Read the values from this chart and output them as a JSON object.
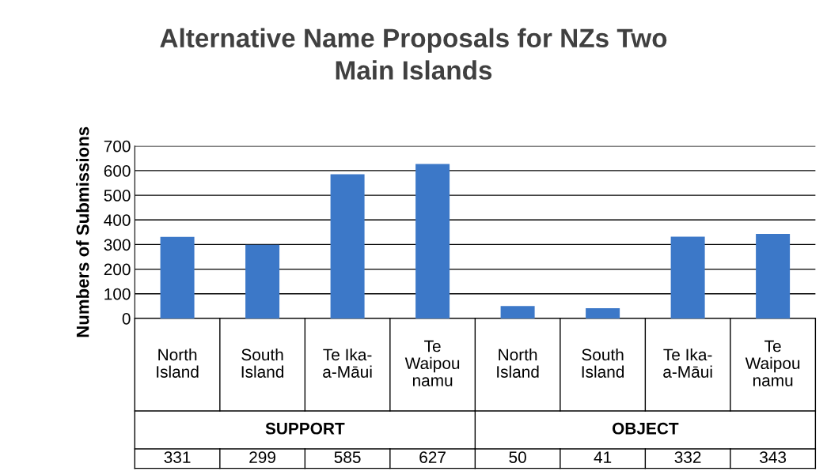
{
  "chart_data": {
    "type": "bar",
    "title": "Alternative Name Proposals for NZs Two\nMain Islands",
    "ylabel": "Numbers of Submissions",
    "categories": [
      "North\nIsland",
      "South\nIsland",
      "Te Ika-\na-Māui",
      "Te\nWaipou\nnamu",
      "North\nIsland",
      "South\nIsland",
      "Te Ika-\na-Māui",
      "Te\nWaipou\nnamu"
    ],
    "values": [
      331,
      299,
      585,
      627,
      50,
      41,
      332,
      343
    ],
    "color": "#3c78c8",
    "ylim": [
      0,
      700
    ],
    "yticks": [
      0,
      100,
      200,
      300,
      400,
      500,
      600,
      700
    ],
    "grid": "y",
    "data_labels": true,
    "annotations": [
      "SUPPORT",
      "OBJECT"
    ]
  }
}
